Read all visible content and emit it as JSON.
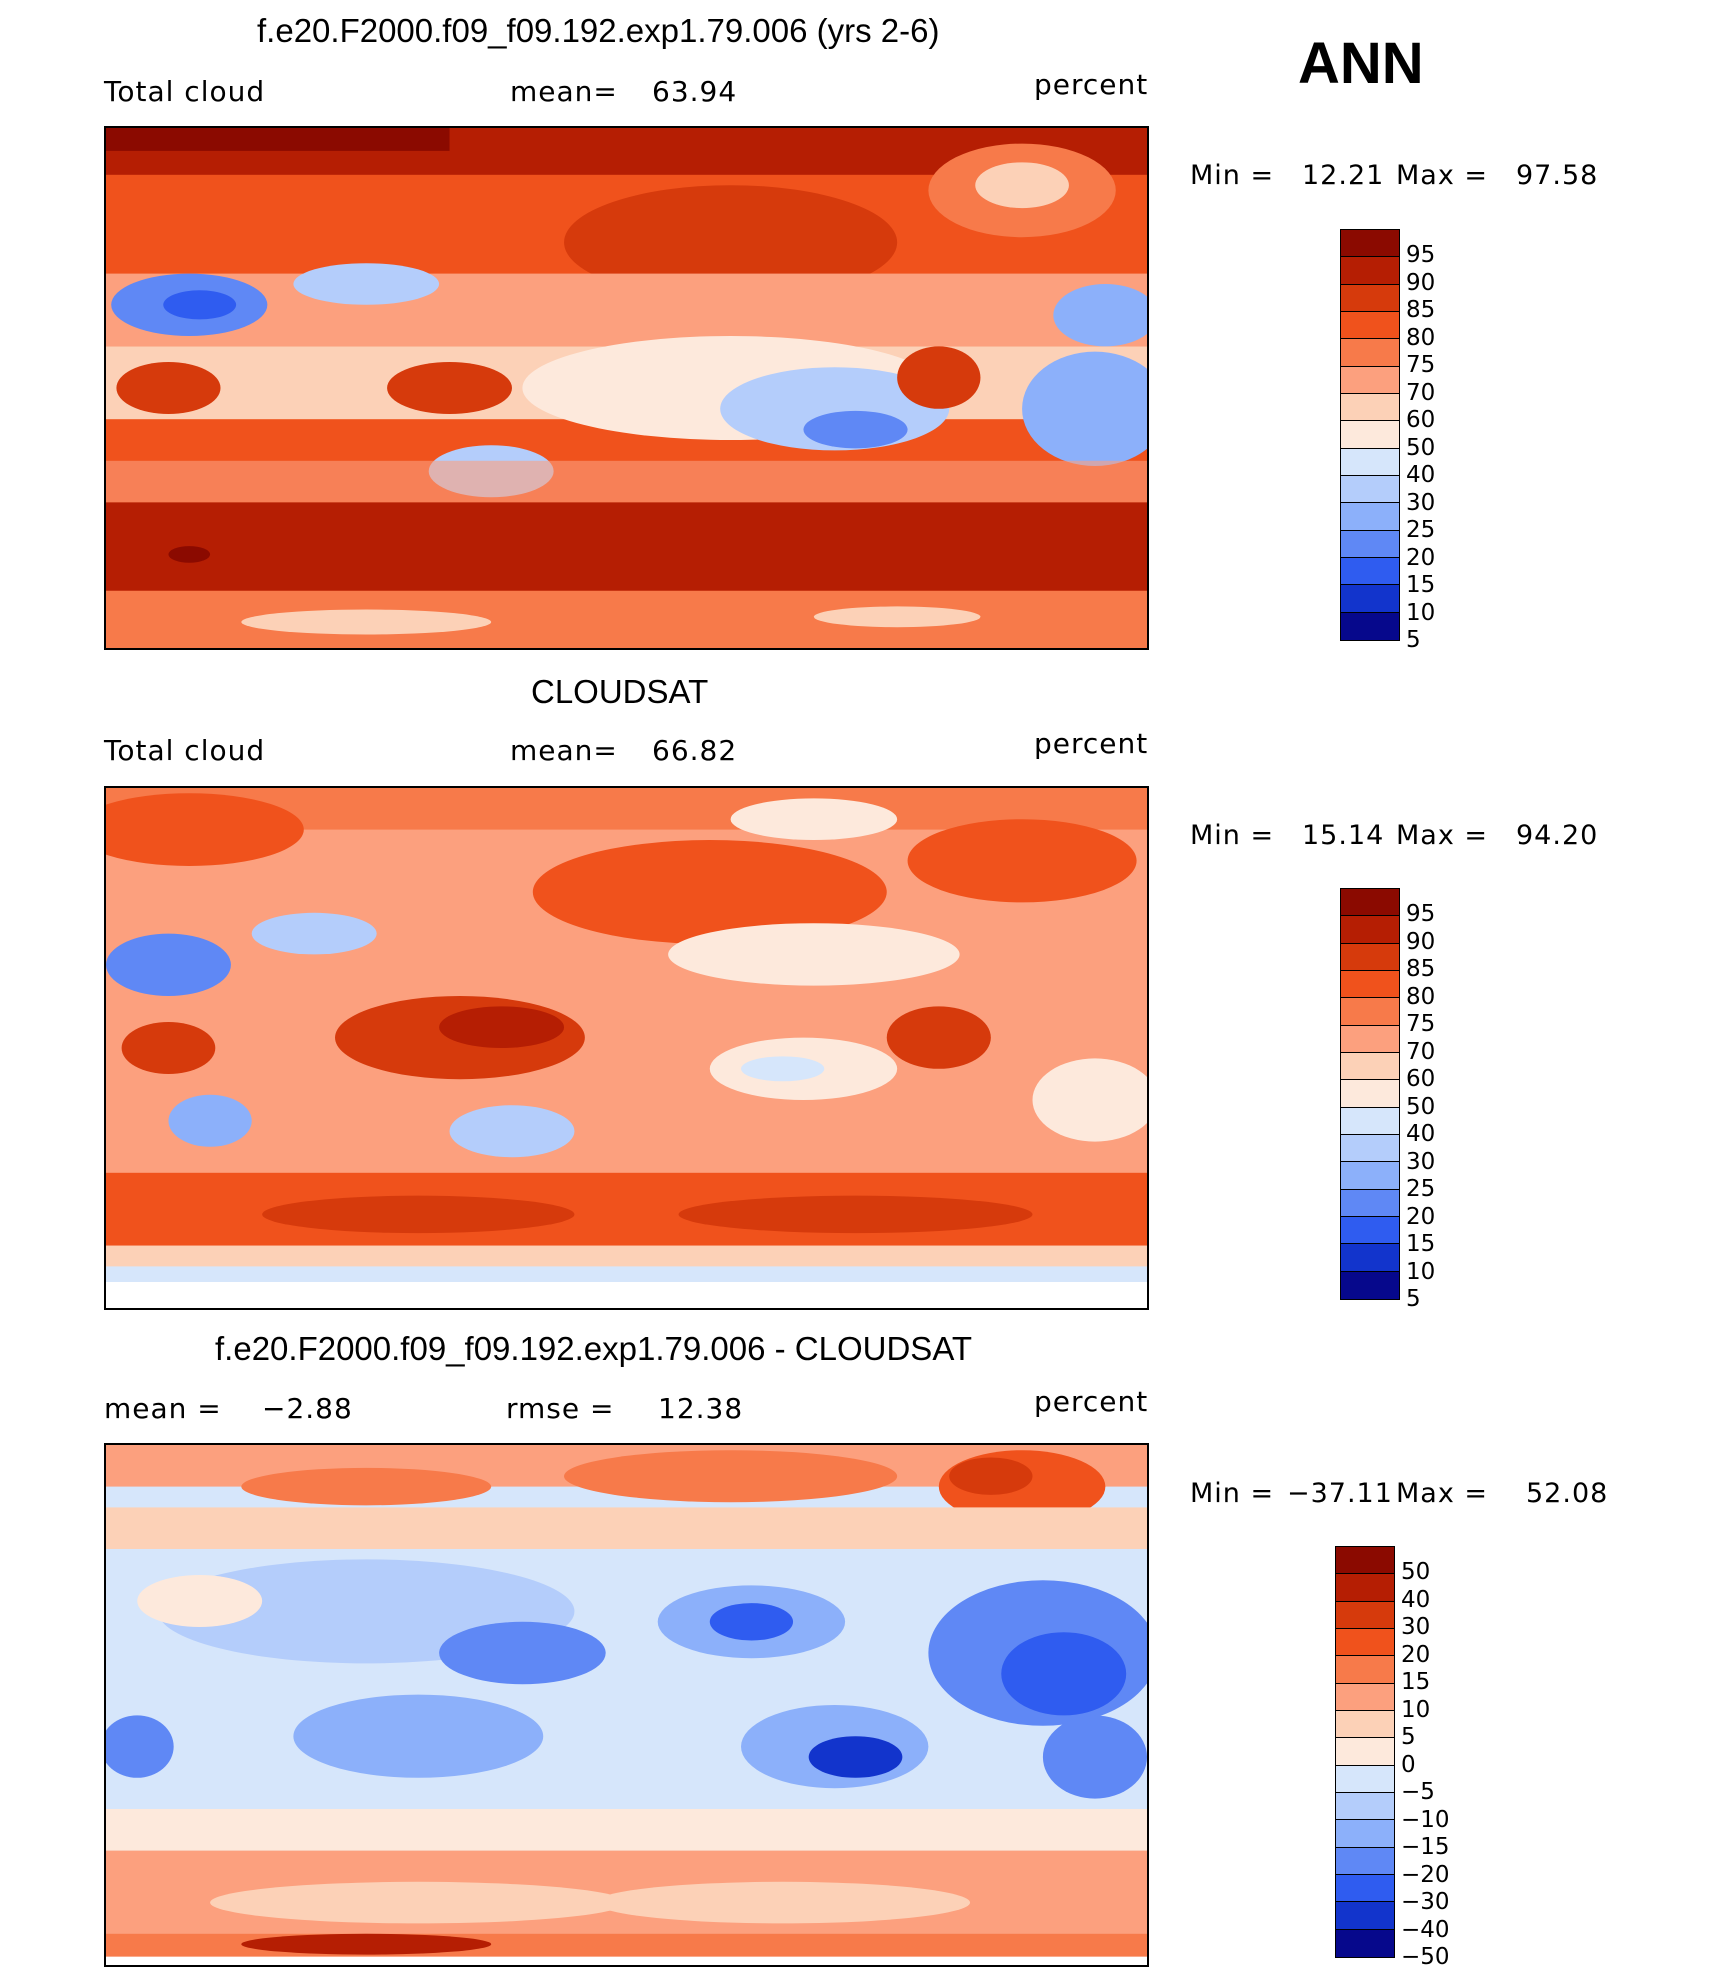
{
  "season": "ANN",
  "panels": [
    {
      "title": "f.e20.F2000.f09_f09.192.exp1.79.006 (yrs 2-6)",
      "left_label": "Total cloud",
      "mid_label": "mean=",
      "mid_value": "63.94",
      "units": "percent",
      "min_label": "Min =",
      "min_value": "12.21",
      "max_label": "Max =",
      "max_value": "97.58",
      "colorbar_ticks": [
        "95",
        "90",
        "85",
        "80",
        "75",
        "70",
        "60",
        "50",
        "40",
        "30",
        "25",
        "20",
        "15",
        "10",
        "5"
      ]
    },
    {
      "title": "CLOUDSAT",
      "left_label": "Total cloud",
      "mid_label": "mean=",
      "mid_value": "66.82",
      "units": "percent",
      "min_label": "Min =",
      "min_value": "15.14",
      "max_label": "Max =",
      "max_value": "94.20",
      "colorbar_ticks": [
        "95",
        "90",
        "85",
        "80",
        "75",
        "70",
        "60",
        "50",
        "40",
        "30",
        "25",
        "20",
        "15",
        "10",
        "5"
      ]
    },
    {
      "title": "f.e20.F2000.f09_f09.192.exp1.79.006 - CLOUDSAT",
      "left_label": "mean =",
      "left_value": "−2.88",
      "mid_label": "rmse =",
      "mid_value": "12.38",
      "units": "percent",
      "min_label": "Min =",
      "min_value": "−37.11",
      "max_label": "Max =",
      "max_value": "52.08",
      "colorbar_ticks": [
        "50",
        "40",
        "30",
        "20",
        "15",
        "10",
        "5",
        "0",
        "−5",
        "−10",
        "−15",
        "−20",
        "−30",
        "−40",
        "−50"
      ]
    }
  ],
  "colors": {
    "abs_scale": [
      "#8b0a00",
      "#b51e03",
      "#d63a0c",
      "#f0521c",
      "#f77a4a",
      "#fca07e",
      "#fcd1b7",
      "#fde9dc",
      "#d6e6fb",
      "#b4cdfb",
      "#8cb0fa",
      "#5f88f5",
      "#2f5cf0",
      "#1234cc",
      "#06088c"
    ],
    "diff_scale": [
      "#8b0a00",
      "#b51e03",
      "#d63a0c",
      "#f0521c",
      "#f77a4a",
      "#fca07e",
      "#fcd1b7",
      "#fde9dc",
      "#d6e6fb",
      "#b4cdfb",
      "#8cb0fa",
      "#5f88f5",
      "#2f5cf0",
      "#1234cc",
      "#06088c"
    ]
  }
}
